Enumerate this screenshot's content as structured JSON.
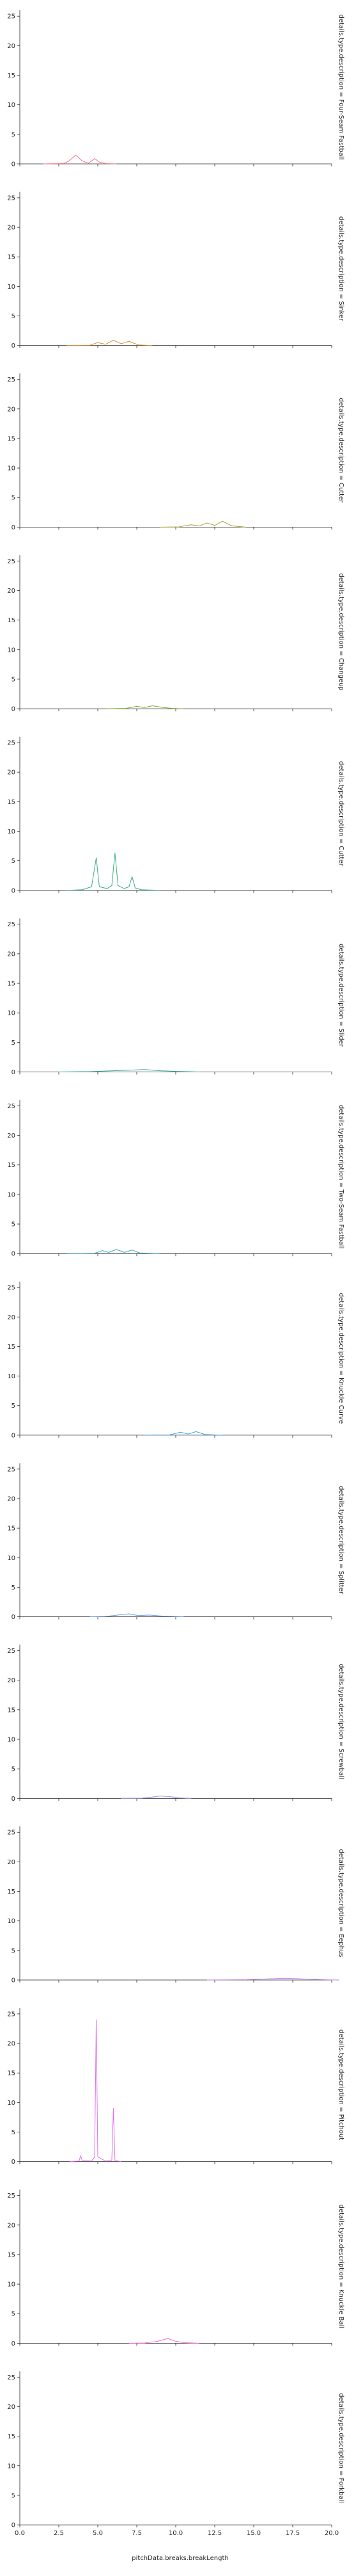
{
  "chart_data": {
    "type": "line",
    "chart_kind": "faceted kernel density",
    "xlabel": "pitchData.breaks.breakLength",
    "ylabel": "",
    "xlim": [
      0,
      20
    ],
    "ylim": [
      0,
      26
    ],
    "x_ticks": [
      "0.0",
      "2.5",
      "5.0",
      "7.5",
      "10.0",
      "12.5",
      "15.0",
      "17.5",
      "20.0"
    ],
    "y_ticks": [
      "0",
      "5",
      "10",
      "15",
      "20",
      "25"
    ],
    "grid": false,
    "legend": "none",
    "facet_title_prefix": "details.type.description = ",
    "facets": [
      {
        "title": "details.type.description = Four-Seam Fastball",
        "color": "#f77189",
        "points": [
          [
            1.5,
            0
          ],
          [
            2.8,
            0.05
          ],
          [
            3.1,
            0.4
          ],
          [
            3.6,
            1.5
          ],
          [
            4.0,
            0.5
          ],
          [
            4.4,
            0.1
          ],
          [
            4.8,
            0.9
          ],
          [
            5.1,
            0.3
          ],
          [
            5.5,
            0.05
          ],
          [
            6.2,
            0
          ]
        ]
      },
      {
        "title": "details.type.description = Sinker",
        "color": "#dc8932",
        "points": [
          [
            3.0,
            0
          ],
          [
            4.5,
            0.05
          ],
          [
            5.0,
            0.5
          ],
          [
            5.5,
            0.2
          ],
          [
            6.0,
            0.9
          ],
          [
            6.5,
            0.3
          ],
          [
            7.0,
            0.7
          ],
          [
            7.6,
            0.1
          ],
          [
            8.5,
            0
          ]
        ]
      },
      {
        "title": "details.type.description = Cutter",
        "color": "#ae9d31",
        "points": [
          [
            9.0,
            0
          ],
          [
            10.2,
            0.05
          ],
          [
            11.0,
            0.4
          ],
          [
            11.5,
            0.2
          ],
          [
            12.0,
            0.7
          ],
          [
            12.5,
            0.3
          ],
          [
            13.0,
            1.0
          ],
          [
            13.6,
            0.2
          ],
          [
            14.5,
            0
          ]
        ]
      },
      {
        "title": "details.type.description = Changeup",
        "color": "#77ab31",
        "points": [
          [
            5.5,
            0
          ],
          [
            6.8,
            0.05
          ],
          [
            7.5,
            0.4
          ],
          [
            8.0,
            0.2
          ],
          [
            8.5,
            0.5
          ],
          [
            9.2,
            0.2
          ],
          [
            9.8,
            0.05
          ],
          [
            10.5,
            0
          ]
        ]
      },
      {
        "title": "details.type.description = Cutter",
        "color": "#33b07a",
        "points": [
          [
            3.0,
            0
          ],
          [
            4.0,
            0.1
          ],
          [
            4.6,
            0.6
          ],
          [
            4.9,
            5.5
          ],
          [
            5.1,
            0.6
          ],
          [
            5.6,
            0.3
          ],
          [
            5.9,
            0.8
          ],
          [
            6.1,
            6.3
          ],
          [
            6.3,
            0.8
          ],
          [
            6.7,
            0.3
          ],
          [
            7.0,
            0.6
          ],
          [
            7.2,
            2.3
          ],
          [
            7.4,
            0.4
          ],
          [
            7.8,
            0.1
          ],
          [
            9.0,
            0
          ]
        ]
      },
      {
        "title": "details.type.description = Slider",
        "color": "#36ada4",
        "points": [
          [
            2.5,
            0
          ],
          [
            4.5,
            0.05
          ],
          [
            6.0,
            0.2
          ],
          [
            7.0,
            0.3
          ],
          [
            8.0,
            0.4
          ],
          [
            9.0,
            0.2
          ],
          [
            10.0,
            0.1
          ],
          [
            11.5,
            0
          ]
        ]
      },
      {
        "title": "details.type.description = Two-Seam Fastball",
        "color": "#38a9c5",
        "points": [
          [
            3.0,
            0
          ],
          [
            4.8,
            0.05
          ],
          [
            5.3,
            0.5
          ],
          [
            5.7,
            0.2
          ],
          [
            6.2,
            0.7
          ],
          [
            6.7,
            0.2
          ],
          [
            7.2,
            0.6
          ],
          [
            7.7,
            0.1
          ],
          [
            9.0,
            0
          ]
        ]
      },
      {
        "title": "details.type.description = Knuckle Curve",
        "color": "#3ba3ec",
        "points": [
          [
            8.0,
            0
          ],
          [
            9.6,
            0.05
          ],
          [
            10.3,
            0.5
          ],
          [
            10.8,
            0.2
          ],
          [
            11.3,
            0.6
          ],
          [
            11.9,
            0.1
          ],
          [
            13.0,
            0
          ]
        ]
      },
      {
        "title": "details.type.description = Splitter",
        "color": "#6e9bf4",
        "points": [
          [
            4.5,
            0
          ],
          [
            5.5,
            0.05
          ],
          [
            6.3,
            0.3
          ],
          [
            7.0,
            0.5
          ],
          [
            7.6,
            0.2
          ],
          [
            8.3,
            0.3
          ],
          [
            9.2,
            0.1
          ],
          [
            10.5,
            0
          ]
        ]
      },
      {
        "title": "details.type.description = Screwball",
        "color": "#9a8ff4",
        "points": [
          [
            6.5,
            0
          ],
          [
            7.8,
            0.05
          ],
          [
            8.4,
            0.2
          ],
          [
            9.0,
            0.4
          ],
          [
            9.6,
            0.3
          ],
          [
            10.2,
            0.1
          ],
          [
            11.0,
            0
          ]
        ]
      },
      {
        "title": "details.type.description = Eephus",
        "color": "#c281f4",
        "points": [
          [
            12.0,
            0
          ],
          [
            14.5,
            0.05
          ],
          [
            16.0,
            0.2
          ],
          [
            17.0,
            0.3
          ],
          [
            18.0,
            0.2
          ],
          [
            19.5,
            0.05
          ],
          [
            20.5,
            0
          ]
        ]
      },
      {
        "title": "details.type.description = Pitchout",
        "color": "#e26ff2",
        "points": [
          [
            3.2,
            0
          ],
          [
            3.8,
            0.1
          ],
          [
            3.9,
            1.0
          ],
          [
            4.0,
            0.2
          ],
          [
            4.6,
            0.1
          ],
          [
            4.8,
            0.8
          ],
          [
            4.9,
            24.0
          ],
          [
            5.0,
            0.8
          ],
          [
            5.5,
            0.1
          ],
          [
            5.9,
            0.2
          ],
          [
            6.0,
            9.0
          ],
          [
            6.1,
            0.2
          ],
          [
            6.5,
            0
          ]
        ]
      },
      {
        "title": "details.type.description = Knuckle Ball",
        "color": "#f563d4",
        "points": [
          [
            7.0,
            0
          ],
          [
            8.0,
            0.05
          ],
          [
            8.8,
            0.3
          ],
          [
            9.5,
            0.8
          ],
          [
            9.9,
            0.4
          ],
          [
            10.5,
            0.1
          ],
          [
            11.5,
            0
          ]
        ]
      },
      {
        "title": "details.type.description = Forkball",
        "color": "#f66bad",
        "points": []
      }
    ]
  }
}
